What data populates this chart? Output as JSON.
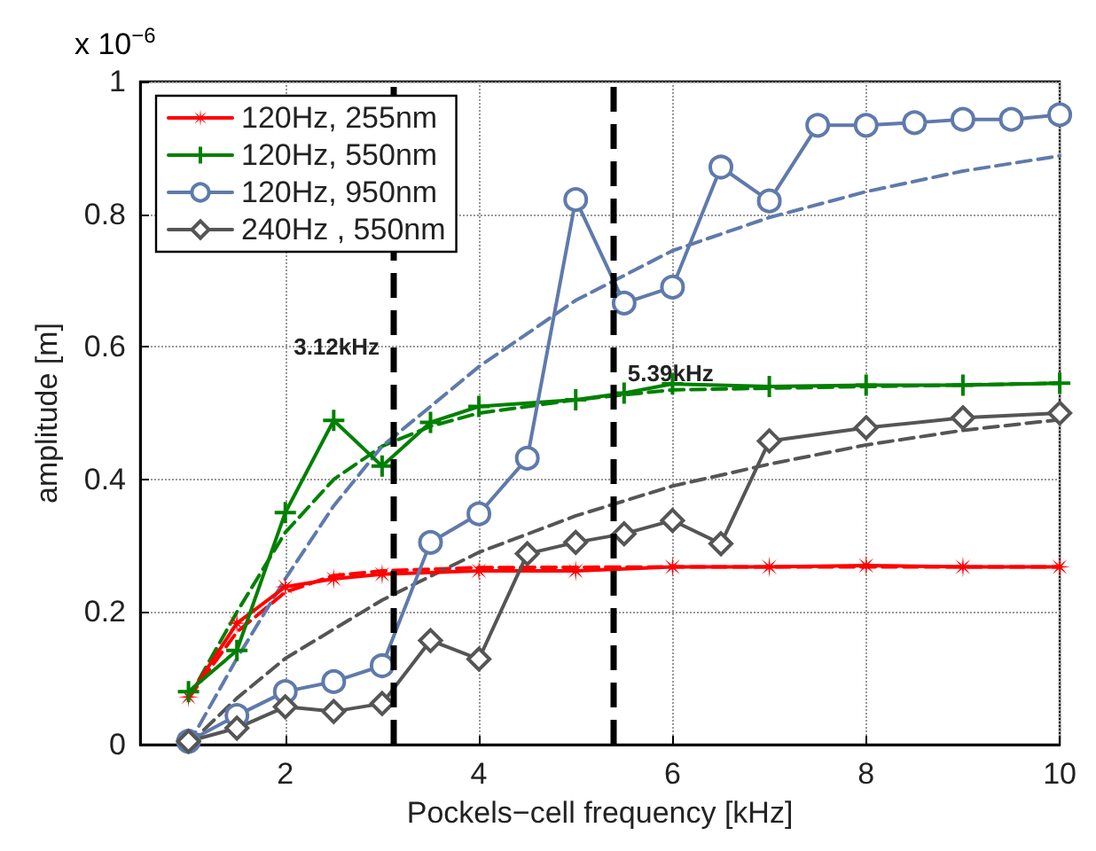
{
  "chart_data": {
    "type": "line",
    "xlabel": "Pockels−cell frequency [kHz]",
    "ylabel": "amplitude [m]",
    "annotations": [
      "x 10$^{−6}$"
    ],
    "xlim": [
      0.5,
      10
    ],
    "xticks": [
      2,
      4,
      6,
      8,
      10
    ],
    "ylim": [
      0,
      1
    ],
    "yticks": [
      0,
      0.2,
      0.4,
      0.6,
      0.8,
      1
    ],
    "grid": true,
    "legend": "top left",
    "series": [
      {
        "name": "120Hz, 255nm",
        "color": "#ff0000",
        "marker": "star",
        "x": [
          1,
          1.5,
          2,
          2.5,
          3,
          4,
          5,
          6,
          7,
          8,
          9,
          10
        ],
        "values": [
          0.072,
          0.183,
          0.238,
          0.25,
          0.257,
          0.262,
          0.262,
          0.268,
          0.268,
          0.27,
          0.268,
          0.268
        ]
      },
      {
        "name": "120Hz, 550nm",
        "color": "#008000",
        "marker": "cross",
        "x": [
          1,
          1.5,
          2,
          2.5,
          3,
          3.5,
          4,
          5,
          5.5,
          6,
          7,
          8,
          9,
          10
        ],
        "values": [
          0.08,
          0.142,
          0.35,
          0.489,
          0.42,
          0.486,
          0.51,
          0.52,
          0.53,
          0.544,
          0.54,
          0.542,
          0.542,
          0.545
        ]
      },
      {
        "name": "120Hz, 950nm",
        "color": "#5f7aab",
        "marker": "circle",
        "x": [
          1,
          1.5,
          2,
          2.5,
          3,
          3.5,
          4,
          4.5,
          5,
          5.5,
          6,
          6.5,
          7,
          7.5,
          8,
          8.5,
          9,
          9.5,
          10
        ],
        "values": [
          0.005,
          0.044,
          0.08,
          0.095,
          0.119,
          0.305,
          0.348,
          0.432,
          0.822,
          0.666,
          0.69,
          0.871,
          0.82,
          0.934,
          0.934,
          0.938,
          0.943,
          0.943,
          0.95
        ]
      },
      {
        "name": "240Hz , 550nm",
        "color": "#555555",
        "marker": "diamond",
        "x": [
          1,
          1.5,
          2,
          2.5,
          3,
          3.5,
          4,
          4.5,
          5,
          5.5,
          6,
          6.5,
          7,
          8,
          9,
          10
        ],
        "values": [
          0.005,
          0.025,
          0.057,
          0.05,
          0.062,
          0.157,
          0.129,
          0.288,
          0.305,
          0.318,
          0.338,
          0.303,
          0.458,
          0.478,
          0.493,
          0.5
        ]
      },
      {
        "color": "#ff0000",
        "marker": "none",
        "line_style": "dashed",
        "x": [
          1,
          1.5,
          2,
          2.5,
          3,
          4,
          6,
          8,
          10
        ],
        "values": [
          0.07,
          0.17,
          0.23,
          0.255,
          0.262,
          0.267,
          0.268,
          0.268,
          0.268
        ]
      },
      {
        "color": "#008000",
        "marker": "none",
        "line_style": "dashed",
        "x": [
          1,
          1.5,
          2,
          2.5,
          3,
          3.5,
          4,
          5,
          6,
          8,
          10
        ],
        "values": [
          0.07,
          0.2,
          0.32,
          0.4,
          0.45,
          0.48,
          0.5,
          0.52,
          0.535,
          0.54,
          0.545
        ]
      },
      {
        "color": "#5f7aab",
        "marker": "none",
        "line_style": "dashed",
        "x": [
          1,
          1.5,
          2,
          2.5,
          3,
          4,
          5,
          6,
          7,
          8,
          9,
          10
        ],
        "values": [
          0,
          0.13,
          0.25,
          0.36,
          0.45,
          0.57,
          0.67,
          0.745,
          0.795,
          0.834,
          0.865,
          0.888
        ]
      },
      {
        "color": "#555555",
        "marker": "none",
        "line_style": "dashed",
        "x": [
          1,
          1.5,
          2,
          3,
          4,
          5,
          6,
          7,
          8,
          9,
          10
        ],
        "values": [
          0,
          0.07,
          0.13,
          0.218,
          0.29,
          0.345,
          0.39,
          0.423,
          0.452,
          0.474,
          0.49
        ]
      }
    ],
    "ref_lines": [
      {
        "axis": "x",
        "value": 3.12,
        "label": "3.12kHz",
        "color": "#000000",
        "line_style": "dashed"
      },
      {
        "axis": "x",
        "value": 5.39,
        "label": "5.39kHz",
        "color": "#000000",
        "line_style": "dashed"
      }
    ]
  }
}
